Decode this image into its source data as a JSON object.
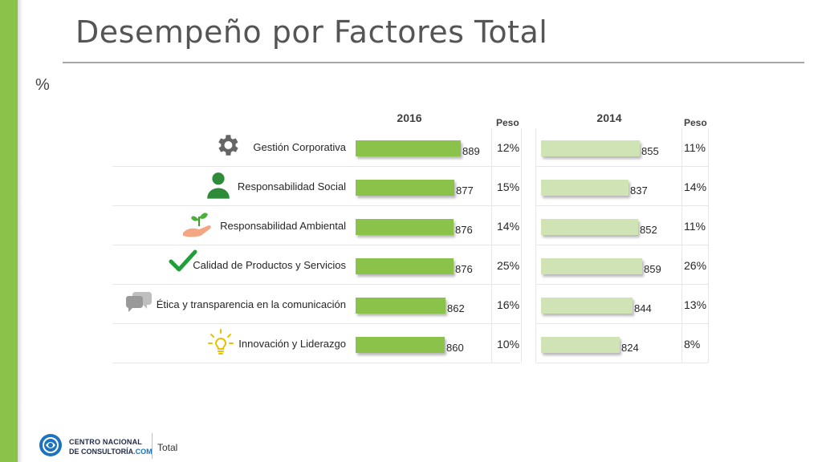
{
  "title": "Desempeño por Factores Total",
  "unit_label": "%",
  "colors": {
    "accent": "#8bc34a",
    "bar_2016": "#8bc34a",
    "bar_2014": "#cfe3b4"
  },
  "chart_data": {
    "type": "bar",
    "categories": [
      "Gestión Corporativa",
      "Responsabilidad Social",
      "Responsabilidad Ambiental",
      "Calidad de Productos y Servicios",
      "Ética y transparencia en la comunicación",
      "Innovación y Liderazgo"
    ],
    "icons": [
      "gear-icon",
      "person-icon",
      "plant-hand-icon",
      "checkmark-icon",
      "speech-bubbles-icon",
      "lightbulb-icon"
    ],
    "series": [
      {
        "name": "2016",
        "values": [
          889,
          877,
          876,
          876,
          862,
          860
        ],
        "peso": [
          "12%",
          "15%",
          "14%",
          "25%",
          "16%",
          "10%"
        ],
        "value_labels": [
          "889",
          "877",
          "876",
          "876",
          "862",
          "860"
        ]
      },
      {
        "name": "2014",
        "values": [
          855,
          837,
          852,
          859,
          844,
          824
        ],
        "peso": [
          "11%",
          "14%",
          "11%",
          "26%",
          "13%",
          "8%"
        ],
        "value_labels": [
          "855",
          "837",
          "852",
          "859",
          "844",
          "824"
        ]
      }
    ],
    "peso_header": "Peso"
  },
  "footer": {
    "org_line1": "CENTRO NACIONAL",
    "org_line2_a": "DE CONSULTORÍA",
    "org_line2_b": ".COM",
    "section": "Total"
  }
}
